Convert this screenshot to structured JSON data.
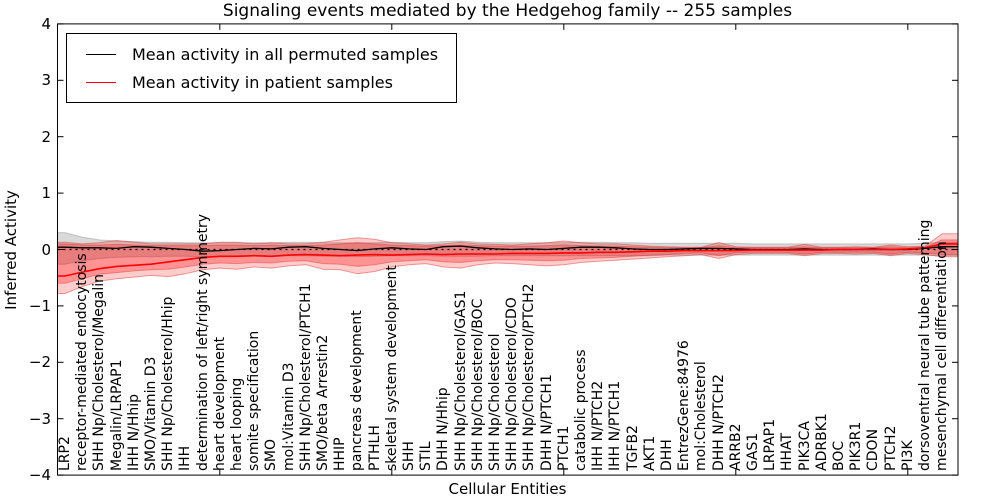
{
  "figure": {
    "title": "Signaling events mediated by the Hedgehog family -- 255 samples",
    "xlabel": "Cellular Entities",
    "ylabel": "Inferred Activity"
  },
  "legend": {
    "items": [
      {
        "label": "Mean activity in all permuted samples",
        "color": "#000000"
      },
      {
        "label": "Mean activity in patient samples",
        "color": "#ff0000"
      }
    ],
    "position": "upper left"
  },
  "chart_data": {
    "type": "line",
    "title": "Signaling events mediated by the Hedgehog family -- 255 samples",
    "xlabel": "Cellular Entities",
    "ylabel": "Inferred Activity",
    "ylim": [
      -4,
      4
    ],
    "yticks": [
      4,
      3,
      2,
      1,
      0,
      -1,
      -2,
      -3,
      -4
    ],
    "x_major_tick_indices": [
      9,
      19,
      29,
      39,
      49
    ],
    "grid": false,
    "legend_position": "upper left",
    "zero_line": {
      "y": 0,
      "style": "dashed",
      "color": "#000000"
    },
    "categories": [
      "LRP2",
      "receptor-mediated endocytosis",
      "SHH Np/Cholesterol/Megalin",
      "Megalin/LRPAP1",
      "IHH N/Hhip",
      "SMO/Vitamin D3",
      "SHH Np/Cholesterol/Hhip",
      "IHH",
      "determination of left/right symmetry",
      "heart development",
      "heart looping",
      "somite specification",
      "SMO",
      "mol:Vitamin D3",
      "SHH Np/Cholesterol/PTCH1",
      "SMO/beta Arrestin2",
      "HHIP",
      "pancreas development",
      "PTHLH",
      "skeletal system development",
      "SHH",
      "STIL",
      "DHH N/Hhip",
      "SHH Np/Cholesterol/GAS1",
      "SHH Np/Cholesterol/BOC",
      "SHH Np/Cholesterol",
      "SHH Np/Cholesterol/CDO",
      "SHH Np/Cholesterol/PTCH2",
      "DHH N/PTCH1",
      "PTCH1",
      "catabolic process",
      "IHH N/PTCH2",
      "IHH N/PTCH1",
      "TGFB2",
      "AKT1",
      "DHH",
      "EntrezGene:84976",
      "mol:Cholesterol",
      "DHH N/PTCH2",
      "ARRB2",
      "GAS1",
      "LRPAP1",
      "HHAT",
      "PIK3CA",
      "ADRBK1",
      "BOC",
      "PIK3R1",
      "CDON",
      "PTCH2",
      "PI3K",
      "dorsoventral neural tube patterning",
      "mesenchymal cell differentiation"
    ],
    "series": [
      {
        "name": "Mean activity in all permuted samples",
        "color": "#000000",
        "style": "solid",
        "values": [
          0.04,
          0.03,
          0.03,
          0.02,
          0.05,
          0.04,
          0.02,
          0.0,
          -0.03,
          -0.02,
          0.0,
          0.02,
          0.01,
          0.04,
          0.05,
          0.02,
          0.0,
          -0.02,
          0.01,
          0.03,
          0.01,
          0.0,
          0.05,
          0.06,
          0.03,
          0.01,
          0.0,
          0.01,
          0.0,
          0.02,
          0.04,
          0.04,
          0.03,
          0.01,
          0.0,
          0.0,
          0.01,
          0.02,
          0.02,
          0.01,
          0.0,
          0.0,
          0.0,
          0.01,
          0.0,
          0.0,
          0.0,
          0.01,
          0.0,
          0.0,
          0.02,
          0.05
        ]
      },
      {
        "name": "Mean activity in patient samples",
        "color": "#ff0000",
        "style": "solid",
        "values": [
          -0.47,
          -0.4,
          -0.34,
          -0.3,
          -0.28,
          -0.26,
          -0.22,
          -0.18,
          -0.14,
          -0.12,
          -0.12,
          -0.11,
          -0.12,
          -0.1,
          -0.09,
          -0.1,
          -0.11,
          -0.1,
          -0.09,
          -0.1,
          -0.09,
          -0.08,
          -0.09,
          -0.08,
          -0.08,
          -0.08,
          -0.07,
          -0.07,
          -0.07,
          -0.06,
          -0.06,
          -0.05,
          -0.05,
          -0.04,
          -0.03,
          -0.03,
          -0.02,
          -0.02,
          -0.02,
          -0.02,
          -0.01,
          -0.01,
          -0.01,
          -0.01,
          -0.01,
          0.0,
          0.0,
          0.0,
          0.0,
          0.01,
          0.03,
          0.1
        ]
      }
    ],
    "bands": [
      {
        "name": "permuted-std-band",
        "fill": "rgba(0,0,0,0.15)",
        "stroke": "rgba(0,0,0,0.18)",
        "upper": [
          0.3,
          0.22,
          0.17,
          0.15,
          0.14,
          0.13,
          0.13,
          0.12,
          0.12,
          0.12,
          0.12,
          0.12,
          0.12,
          0.13,
          0.13,
          0.12,
          0.12,
          0.12,
          0.12,
          0.13,
          0.12,
          0.12,
          0.14,
          0.15,
          0.13,
          0.12,
          0.12,
          0.12,
          0.12,
          0.12,
          0.13,
          0.13,
          0.12,
          0.12,
          0.11,
          0.11,
          0.11,
          0.11,
          0.11,
          0.11,
          0.1,
          0.1,
          0.1,
          0.1,
          0.1,
          0.1,
          0.1,
          0.1,
          0.1,
          0.1,
          0.11,
          0.13
        ],
        "lower": [
          -0.26,
          -0.2,
          -0.16,
          -0.14,
          -0.13,
          -0.13,
          -0.12,
          -0.12,
          -0.13,
          -0.13,
          -0.12,
          -0.11,
          -0.12,
          -0.11,
          -0.11,
          -0.12,
          -0.12,
          -0.13,
          -0.12,
          -0.11,
          -0.11,
          -0.11,
          -0.12,
          -0.12,
          -0.12,
          -0.11,
          -0.11,
          -0.11,
          -0.11,
          -0.11,
          -0.11,
          -0.11,
          -0.11,
          -0.11,
          -0.11,
          -0.1,
          -0.1,
          -0.1,
          -0.1,
          -0.1,
          -0.1,
          -0.1,
          -0.1,
          -0.1,
          -0.1,
          -0.1,
          -0.1,
          -0.1,
          -0.1,
          -0.1,
          -0.1,
          -0.11
        ]
      },
      {
        "name": "patient-outer-band",
        "fill": "rgba(255,0,0,0.2)",
        "stroke": "rgba(220,40,40,0.45)",
        "upper": [
          0.13,
          0.1,
          0.12,
          0.16,
          0.13,
          0.1,
          0.1,
          0.1,
          0.1,
          0.13,
          0.13,
          0.1,
          0.12,
          0.1,
          0.1,
          0.13,
          0.17,
          0.21,
          0.18,
          0.12,
          0.1,
          0.08,
          0.1,
          0.13,
          0.1,
          0.09,
          0.08,
          0.1,
          0.12,
          0.15,
          0.12,
          0.1,
          0.1,
          0.08,
          0.06,
          0.05,
          0.04,
          0.04,
          0.12,
          0.05,
          0.04,
          0.04,
          0.04,
          0.09,
          0.04,
          0.04,
          0.05,
          0.04,
          0.08,
          0.05,
          0.06,
          0.28
        ],
        "lower": [
          -0.78,
          -0.66,
          -0.56,
          -0.52,
          -0.49,
          -0.46,
          -0.48,
          -0.43,
          -0.36,
          -0.33,
          -0.35,
          -0.31,
          -0.33,
          -0.29,
          -0.27,
          -0.35,
          -0.36,
          -0.43,
          -0.39,
          -0.31,
          -0.27,
          -0.25,
          -0.31,
          -0.33,
          -0.27,
          -0.24,
          -0.25,
          -0.27,
          -0.29,
          -0.27,
          -0.23,
          -0.21,
          -0.19,
          -0.17,
          -0.15,
          -0.13,
          -0.11,
          -0.09,
          -0.16,
          -0.09,
          -0.07,
          -0.07,
          -0.07,
          -0.11,
          -0.07,
          -0.07,
          -0.08,
          -0.07,
          -0.11,
          -0.07,
          -0.09,
          -0.13
        ]
      },
      {
        "name": "patient-inner-band",
        "fill": "rgba(255,0,0,0.28)",
        "stroke": "rgba(220,40,40,0.4)",
        "upper": [
          0.1,
          0.08,
          0.08,
          0.09,
          0.08,
          0.07,
          0.07,
          0.07,
          0.07,
          0.08,
          0.08,
          0.07,
          0.08,
          0.07,
          0.07,
          0.08,
          0.1,
          0.12,
          0.1,
          0.08,
          0.07,
          0.06,
          0.07,
          0.08,
          0.07,
          0.06,
          0.06,
          0.06,
          0.07,
          0.08,
          0.07,
          0.06,
          0.06,
          0.05,
          0.04,
          0.03,
          0.03,
          0.03,
          0.07,
          0.03,
          0.03,
          0.03,
          0.03,
          0.05,
          0.03,
          0.03,
          0.03,
          0.03,
          0.05,
          0.03,
          0.04,
          0.17
        ],
        "lower": [
          -0.6,
          -0.52,
          -0.44,
          -0.41,
          -0.38,
          -0.36,
          -0.35,
          -0.31,
          -0.26,
          -0.24,
          -0.25,
          -0.23,
          -0.24,
          -0.21,
          -0.2,
          -0.25,
          -0.26,
          -0.3,
          -0.27,
          -0.22,
          -0.2,
          -0.18,
          -0.22,
          -0.23,
          -0.2,
          -0.18,
          -0.18,
          -0.19,
          -0.2,
          -0.19,
          -0.16,
          -0.15,
          -0.14,
          -0.12,
          -0.1,
          -0.09,
          -0.07,
          -0.06,
          -0.11,
          -0.06,
          -0.05,
          -0.05,
          -0.05,
          -0.08,
          -0.05,
          -0.05,
          -0.05,
          -0.05,
          -0.08,
          -0.05,
          -0.06,
          -0.09
        ]
      }
    ]
  }
}
